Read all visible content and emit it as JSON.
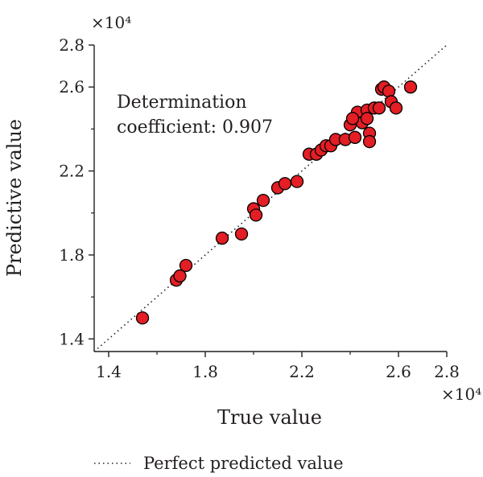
{
  "chart_data": {
    "type": "scatter",
    "xlabel": "True value",
    "ylabel": "Predictive value",
    "xlim": [
      13400,
      28000
    ],
    "ylim": [
      13400,
      28000
    ],
    "x_ticks": [
      14000,
      18000,
      22000,
      26000,
      28000
    ],
    "x_tick_labels": [
      "1.4",
      "1.8",
      "2.2",
      "2.6",
      "2.8"
    ],
    "x_minor_ticks": [
      16000,
      20000,
      24000
    ],
    "y_ticks": [
      14000,
      18000,
      22000,
      26000,
      28000
    ],
    "y_tick_labels": [
      "1.4",
      "1.8",
      "2.2",
      "2.6",
      "2.8"
    ],
    "y_minor_ticks": [
      16000,
      20000,
      24000
    ],
    "x_multiplier": "×10⁴",
    "y_multiplier": "×10⁴",
    "grid": false,
    "annotation": [
      "Determination",
      "coefficient: 0.907"
    ],
    "marker_color": "#e31e24",
    "marker_edge_color": "#000000",
    "reference_line": {
      "name": "Perfect predicted value",
      "style": "dotted",
      "from": [
        13400,
        13400
      ],
      "to": [
        28000,
        28000
      ]
    },
    "legend": {
      "label": "Perfect predicted value",
      "placement": "bottom"
    },
    "points": [
      [
        15400,
        15000
      ],
      [
        16800,
        16800
      ],
      [
        16950,
        17000
      ],
      [
        17200,
        17500
      ],
      [
        18700,
        18800
      ],
      [
        19500,
        19000
      ],
      [
        20000,
        20200
      ],
      [
        20100,
        19900
      ],
      [
        20400,
        20600
      ],
      [
        21000,
        21200
      ],
      [
        21300,
        21400
      ],
      [
        21800,
        21500
      ],
      [
        22300,
        22800
      ],
      [
        22600,
        22800
      ],
      [
        22800,
        23000
      ],
      [
        23000,
        23200
      ],
      [
        23200,
        23200
      ],
      [
        23400,
        23500
      ],
      [
        23800,
        23500
      ],
      [
        24000,
        24200
      ],
      [
        24200,
        23600
      ],
      [
        24300,
        24800
      ],
      [
        24500,
        24300
      ],
      [
        24700,
        24900
      ],
      [
        24700,
        24500
      ],
      [
        24800,
        23800
      ],
      [
        24800,
        23400
      ],
      [
        25000,
        25000
      ],
      [
        25200,
        25000
      ],
      [
        25300,
        25900
      ],
      [
        25400,
        26000
      ],
      [
        25600,
        25800
      ],
      [
        25700,
        25300
      ],
      [
        25900,
        25000
      ],
      [
        26500,
        26000
      ],
      [
        24100,
        24500
      ]
    ]
  }
}
